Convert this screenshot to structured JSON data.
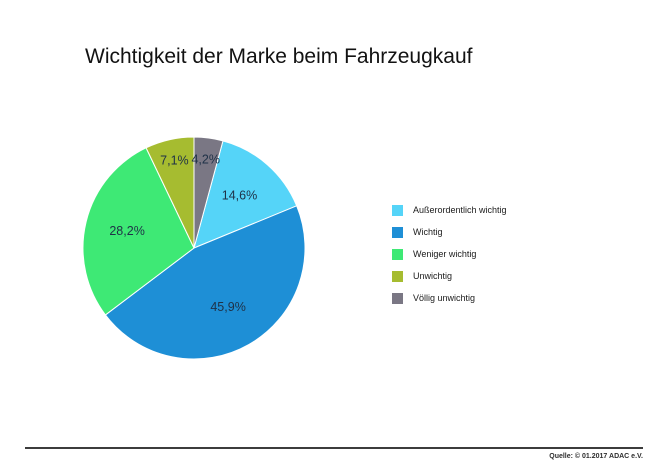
{
  "title": "Wichtigkeit der Marke beim Fahrzeugkauf",
  "source": "Quelle: © 01.2017 ADAC e.V.",
  "chart_data": {
    "type": "pie",
    "title": "Wichtigkeit der Marke beim Fahrzeugkauf",
    "slices": [
      {
        "label": "Außerordentlich wichtig",
        "value": 14.6,
        "display": "14,6%",
        "color": "#55d4f8"
      },
      {
        "label": "Wichtig",
        "value": 45.9,
        "display": "45,9%",
        "color": "#1e8fd6"
      },
      {
        "label": "Weniger wichtig",
        "value": 28.2,
        "display": "28,2%",
        "color": "#3ee975"
      },
      {
        "label": "Unwichtig",
        "value": 7.1,
        "display": "7,1%",
        "color": "#a6bc30"
      },
      {
        "label": "Völlig unwichtig",
        "value": 4.2,
        "display": "4,2%",
        "color": "#7a7784"
      }
    ],
    "start_angle_deg": 15.12,
    "direction": "clockwise",
    "legend_position": "right",
    "slice_border_color": "#ffffff",
    "label_color": "#1f3147",
    "total": 100
  }
}
